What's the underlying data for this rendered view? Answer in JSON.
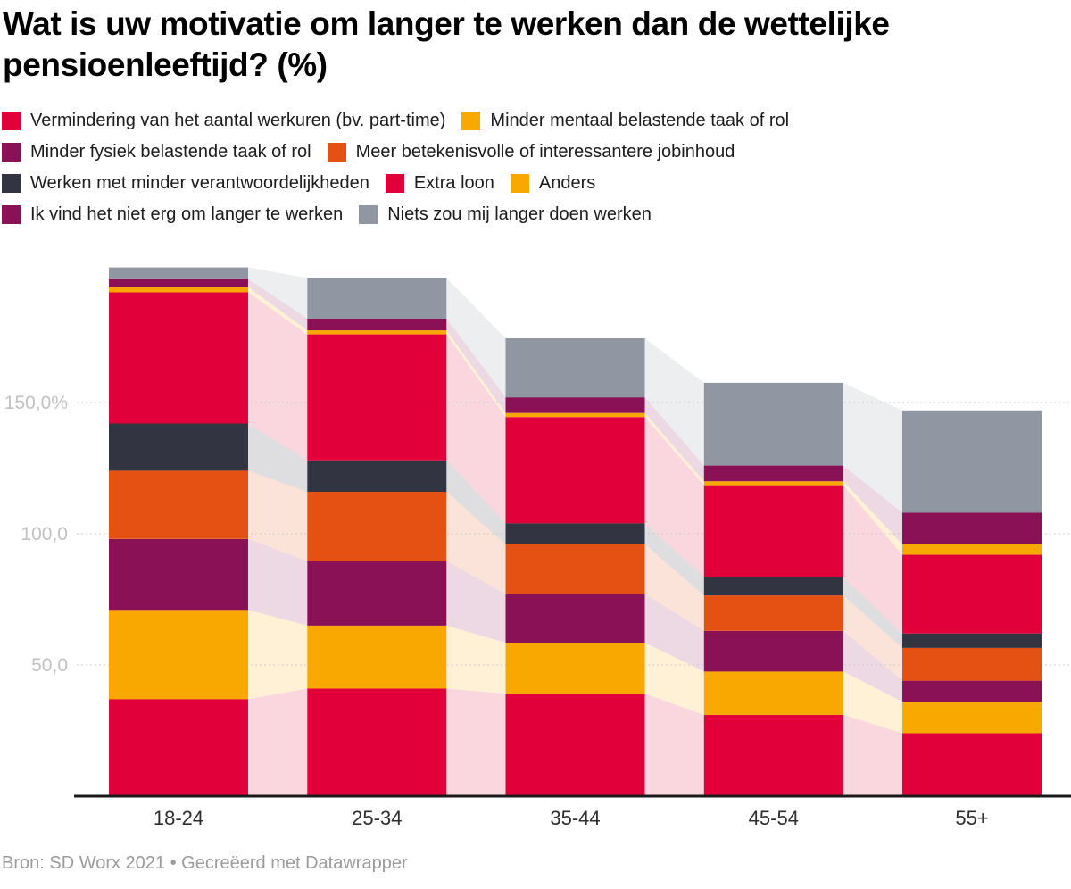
{
  "page": {
    "title_lines": {
      "0": "Wat is uw motivatie om langer te werken dan de wettelijke",
      "1": "pensioenleeftijd? (%)"
    },
    "footer": "Bron: SD Worx 2021 • Gecreëerd met Datawrapper"
  },
  "chart_data": {
    "type": "bar",
    "stacked": true,
    "title": "Wat is uw motivatie om langer te werken dan de wettelijke pensioenleeftijd? (%)",
    "xlabel": "",
    "ylabel": "",
    "ylim": [
      0,
      205
    ],
    "grid": "dotted-horizontal",
    "legend_position": "top",
    "connectors": true,
    "categories": [
      "18-24",
      "25-34",
      "35-44",
      "45-54",
      "55+"
    ],
    "y_ticks": [
      {
        "value": 50,
        "label": "50,0"
      },
      {
        "value": 100,
        "label": "100,0"
      },
      {
        "value": 150,
        "label": "150,0%"
      }
    ],
    "series": [
      {
        "name": "Vermindering van het aantal werkuren (bv. part-time)",
        "color": "#E2003B",
        "values": [
          37,
          41,
          39,
          31,
          24
        ]
      },
      {
        "name": "Minder mentaal belastende taak of rol",
        "color": "#F8A800",
        "values": [
          34,
          24,
          19.5,
          16.5,
          12
        ]
      },
      {
        "name": "Minder fysiek belastende taak of rol",
        "color": "#8A1155",
        "values": [
          27,
          24.5,
          18.5,
          15.5,
          8
        ]
      },
      {
        "name": "Meer betekenisvolle of interessantere jobinhoud",
        "color": "#E55112",
        "values": [
          26,
          26.5,
          19,
          13.5,
          12.5
        ]
      },
      {
        "name": "Werken met minder verantwoordelijkheden",
        "color": "#333441",
        "values": [
          18,
          12,
          8,
          7,
          5.5
        ]
      },
      {
        "name": "Extra loon",
        "color": "#E2003B",
        "values": [
          50,
          48,
          40.5,
          35,
          30
        ]
      },
      {
        "name": "Anders",
        "color": "#F8A800",
        "values": [
          2,
          1.5,
          1.5,
          1.5,
          4
        ]
      },
      {
        "name": "Ik vind het niet erg om langer te werken",
        "color": "#8A1155",
        "values": [
          3,
          4.5,
          6,
          6,
          12
        ]
      },
      {
        "name": "Niets zou mij langer doen werken",
        "color": "#9096A2",
        "values": [
          4.5,
          15.5,
          22.5,
          31.5,
          39
        ]
      }
    ],
    "legend_rows": [
      [
        0,
        1
      ],
      [
        2,
        3
      ],
      [
        4,
        5,
        6
      ],
      [
        7,
        8
      ]
    ]
  }
}
